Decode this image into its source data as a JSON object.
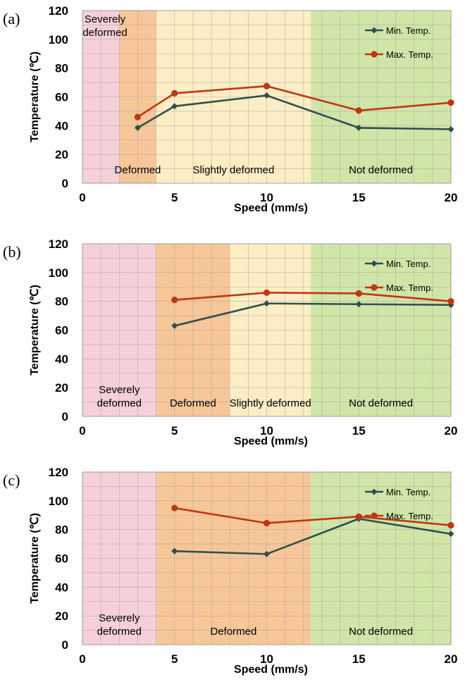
{
  "colors": {
    "min_series": "#2F4F4F",
    "max_series": "#C0360F",
    "zone_severe": "#F4CFD6",
    "zone_deformed": "#F6C596",
    "zone_slight": "#FDEDC4",
    "zone_not": "#CFE5A6",
    "grid": "#9E9E9E"
  },
  "chart_data": [
    {
      "type": "line",
      "panel_label": "(a)",
      "xlabel": "Speed (mm/s)",
      "ylabel": "Temperature (℃)",
      "xlim": [
        0,
        20
      ],
      "ylim": [
        0,
        120
      ],
      "x_ticks": [
        0,
        5,
        10,
        15,
        20
      ],
      "y_ticks": [
        0,
        20,
        40,
        60,
        80,
        100,
        120
      ],
      "legend": "top-right",
      "series": [
        {
          "name": "Min. Temp.",
          "x": [
            3,
            5,
            10,
            15,
            20
          ],
          "values": [
            38.5,
            53.5,
            61,
            38.5,
            37.5
          ]
        },
        {
          "name": "Max. Temp.",
          "x": [
            3,
            5,
            10,
            15,
            20
          ],
          "values": [
            46,
            62.5,
            67.5,
            50.5,
            56
          ]
        }
      ],
      "zones": [
        {
          "label": "Severely deformed",
          "lines": [
            "Severely",
            "deformed"
          ],
          "from": 0,
          "to": 2,
          "kind": "severe",
          "label_pos": "top"
        },
        {
          "label": "Deformed",
          "lines": [
            "Deformed"
          ],
          "from": 2,
          "to": 4,
          "kind": "deformed",
          "label_pos": "bottom"
        },
        {
          "label": "Slightly deformed",
          "lines": [
            "Slightly deformed"
          ],
          "from": 4,
          "to": 12.4,
          "kind": "slight",
          "label_pos": "bottom"
        },
        {
          "label": "Not deformed",
          "lines": [
            "Not deformed"
          ],
          "from": 12.4,
          "to": 20,
          "kind": "not",
          "label_pos": "bottom"
        }
      ]
    },
    {
      "type": "line",
      "panel_label": "(b)",
      "xlabel": "Speed (mm/s)",
      "ylabel": "Temperature (℃)",
      "xlim": [
        0,
        20
      ],
      "ylim": [
        0,
        120
      ],
      "x_ticks": [
        0,
        5,
        10,
        15,
        20
      ],
      "y_ticks": [
        0,
        20,
        40,
        60,
        80,
        100,
        120
      ],
      "legend": "top-right",
      "series": [
        {
          "name": "Min. Temp.",
          "x": [
            5,
            10,
            15,
            20
          ],
          "values": [
            63,
            78.5,
            78,
            77.5
          ]
        },
        {
          "name": "Max. Temp.",
          "x": [
            5,
            10,
            15,
            20
          ],
          "values": [
            81,
            86,
            85.5,
            80
          ]
        }
      ],
      "zones": [
        {
          "label": "Severely deformed",
          "lines": [
            "Severely",
            "deformed"
          ],
          "from": 0,
          "to": 4,
          "kind": "severe",
          "label_pos": "bottom"
        },
        {
          "label": "Deformed",
          "lines": [
            "Deformed"
          ],
          "from": 4,
          "to": 8,
          "kind": "deformed",
          "label_pos": "bottom"
        },
        {
          "label": "Slightly deformed",
          "lines": [
            "Slightly deformed"
          ],
          "from": 8,
          "to": 12.4,
          "kind": "slight",
          "label_pos": "bottom"
        },
        {
          "label": "Not deformed",
          "lines": [
            "Not deformed"
          ],
          "from": 12.4,
          "to": 20,
          "kind": "not",
          "label_pos": "bottom"
        }
      ]
    },
    {
      "type": "line",
      "panel_label": "(c)",
      "xlabel": "Speed (mm/s)",
      "ylabel": "Temperature (℃)",
      "xlim": [
        0,
        20
      ],
      "ylim": [
        0,
        120
      ],
      "x_ticks": [
        0,
        5,
        10,
        15,
        20
      ],
      "y_ticks": [
        0,
        20,
        40,
        60,
        80,
        100,
        120
      ],
      "legend": "top-right",
      "series": [
        {
          "name": "Min. Temp.",
          "x": [
            5,
            10,
            15,
            20
          ],
          "values": [
            65,
            63,
            87.5,
            77
          ]
        },
        {
          "name": "Max. Temp.",
          "x": [
            5,
            10,
            15,
            20
          ],
          "values": [
            95,
            84.5,
            89,
            83
          ]
        }
      ],
      "zones": [
        {
          "label": "Severely deformed",
          "lines": [
            "Severely",
            "deformed"
          ],
          "from": 0,
          "to": 4,
          "kind": "severe",
          "label_pos": "bottom"
        },
        {
          "label": "Deformed",
          "lines": [
            "Deformed"
          ],
          "from": 4,
          "to": 12.4,
          "kind": "deformed",
          "label_pos": "bottom"
        },
        {
          "label": "Not deformed",
          "lines": [
            "Not deformed"
          ],
          "from": 12.4,
          "to": 20,
          "kind": "not",
          "label_pos": "bottom"
        }
      ]
    }
  ]
}
